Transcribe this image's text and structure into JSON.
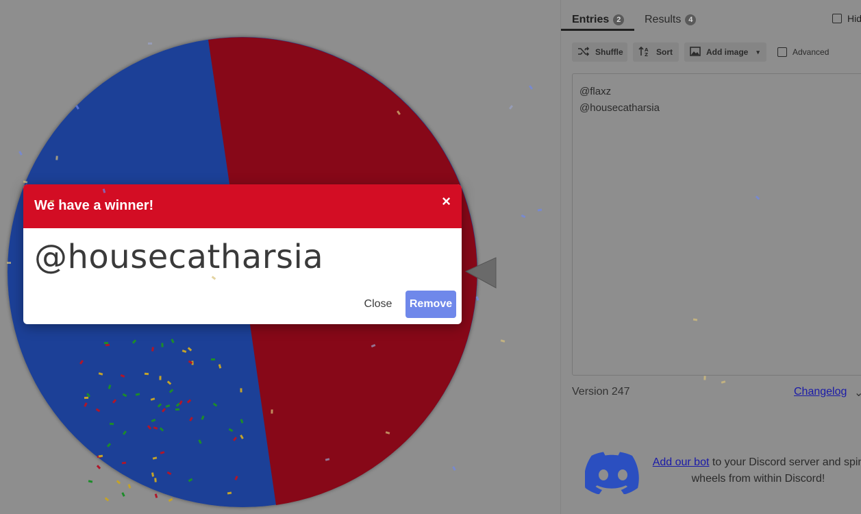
{
  "tabs": {
    "entries_label": "Entries",
    "entries_count": "2",
    "results_label": "Results",
    "results_count": "4"
  },
  "hide_label": "Hid",
  "toolbar": {
    "shuffle_label": "Shuffle",
    "sort_label": "Sort",
    "add_image_label": "Add image",
    "advanced_label": "Advanced"
  },
  "entries": [
    "@flaxz",
    "@housecatharsia"
  ],
  "version": "Version 247",
  "changelog": "Changelog",
  "discord": {
    "link": "Add our bot",
    "text": " to your Discord server and spin wheels from within Discord!"
  },
  "modal": {
    "title": "We have a winner!",
    "close_x": "×",
    "winner": "@housecatharsia",
    "close_label": "Close",
    "remove_label": "Remove"
  },
  "colors": {
    "wheel_blue": "#1e3f97",
    "wheel_red": "#870818",
    "header_red": "#d30d24",
    "remove_blue": "#6f88ea"
  }
}
